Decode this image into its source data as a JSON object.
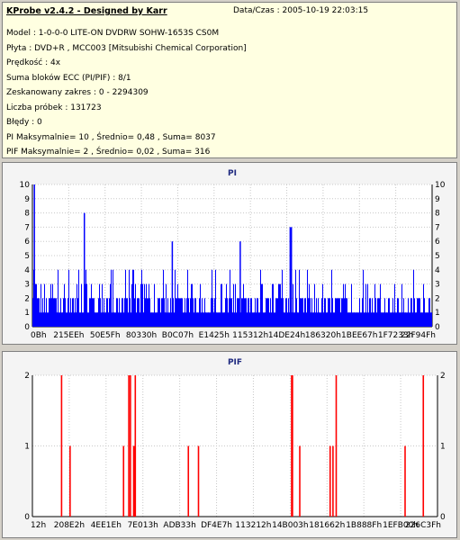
{
  "header": {
    "title": "KProbe v2.4.2 - Designed by Karr",
    "datetime": "Data/Czas : 2005-10-19 22:03:15"
  },
  "info_lines": [
    "Model : 1-0-0-0 LITE-ON DVDRW SOHW-1653S CS0M",
    "Płyta : DVD+R , MCC003 [Mitsubishi Chemical Corporation]",
    "Prędkość : 4x",
    "Suma bloków ECC (PI/PIF) : 8/1",
    "Zeskanowany zakres : 0 - 2294309",
    "Liczba próbek : 131723",
    "Błędy : 0",
    "PI Maksymalnie= 10 , Średnio= 0,48 , Suma= 8037",
    "PIF Maksymalnie= 2 , Średnio= 0,02 , Suma= 316"
  ],
  "colors": {
    "pi_series": "#0000ff",
    "pif_series": "#ff0000",
    "panel_bg": "#ffffe1",
    "chart_bg": "#f4f4f4"
  },
  "chart_data": [
    {
      "type": "bar",
      "title": "PI",
      "ylim": [
        0,
        10
      ],
      "y_ticks": [
        0,
        1,
        2,
        3,
        4,
        5,
        6,
        7,
        8,
        9,
        10
      ],
      "x_tick_labels": [
        "0Bh",
        "215EEh",
        "50E5Fh",
        "80330h",
        "B0C07h",
        "E1425h",
        "115312h",
        "14DE24h",
        "186320h",
        "1BEE67h",
        "1F7233h",
        "22F94Fh"
      ],
      "grid": true,
      "baseline_min": 1,
      "baseline_max": 2,
      "notable_spikes": [
        {
          "position": 0.005,
          "value": 10
        },
        {
          "position": 0.13,
          "value": 8
        },
        {
          "position": 0.35,
          "value": 6
        },
        {
          "position": 0.52,
          "value": 6
        },
        {
          "position": 0.645,
          "value": 7
        },
        {
          "position": 0.648,
          "value": 7
        }
      ],
      "frequent_max": 4
    },
    {
      "type": "bar",
      "title": "PIF",
      "ylim": [
        0,
        2
      ],
      "y_ticks": [
        0,
        1,
        2
      ],
      "x_tick_labels": [
        "12h",
        "208E2h",
        "4EE1Eh",
        "7E013h",
        "ADB33h",
        "DF4E7h",
        "113212h",
        "14B003h",
        "181662h",
        "1B888Fh",
        "1EFB00h",
        "226C3Fh"
      ],
      "grid": true,
      "bars": [
        {
          "position": 0.072,
          "value": 2
        },
        {
          "position": 0.093,
          "value": 1
        },
        {
          "position": 0.225,
          "value": 1
        },
        {
          "position": 0.238,
          "value": 2
        },
        {
          "position": 0.242,
          "value": 2
        },
        {
          "position": 0.25,
          "value": 1
        },
        {
          "position": 0.252,
          "value": 1
        },
        {
          "position": 0.254,
          "value": 2
        },
        {
          "position": 0.385,
          "value": 1
        },
        {
          "position": 0.41,
          "value": 1
        },
        {
          "position": 0.64,
          "value": 2
        },
        {
          "position": 0.642,
          "value": 2
        },
        {
          "position": 0.66,
          "value": 1
        },
        {
          "position": 0.735,
          "value": 1
        },
        {
          "position": 0.742,
          "value": 1
        },
        {
          "position": 0.75,
          "value": 2
        },
        {
          "position": 0.92,
          "value": 1
        },
        {
          "position": 0.965,
          "value": 2
        }
      ]
    }
  ]
}
